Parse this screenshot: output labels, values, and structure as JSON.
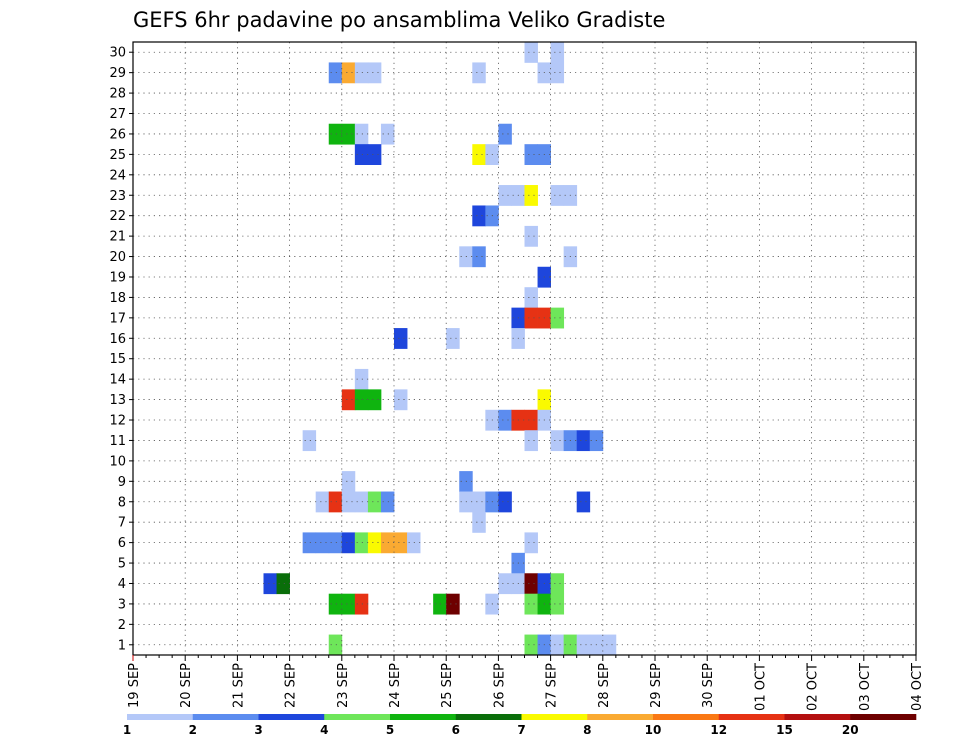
{
  "chart_data": {
    "type": "heatmap",
    "title": "GEFS 6hr padavine po ansamblima Veliko Gradiste",
    "x_labels": [
      "19 SEP",
      "20 SEP",
      "21 SEP",
      "22 SEP",
      "23 SEP",
      "24 SEP",
      "25 SEP",
      "26 SEP",
      "27 SEP",
      "28 SEP",
      "29 SEP",
      "30 SEP",
      "01 OCT",
      "02 OCT",
      "03 OCT",
      "04 OCT"
    ],
    "x_range_steps": [
      0,
      60
    ],
    "y_range": [
      0.5,
      30.5
    ],
    "y_ticks": [
      1,
      2,
      3,
      4,
      5,
      6,
      7,
      8,
      9,
      10,
      11,
      12,
      13,
      14,
      15,
      16,
      17,
      18,
      19,
      20,
      21,
      22,
      23,
      24,
      25,
      26,
      27,
      28,
      29,
      30
    ],
    "grid": true,
    "colorbar": {
      "labels": [
        "1",
        "2",
        "3",
        "4",
        "5",
        "6",
        "7",
        "8",
        "10",
        "12",
        "15",
        "20"
      ],
      "colors": [
        "#b4c8f8",
        "#5c8cef",
        "#1e46dc",
        "#6ee65a",
        "#0fb40f",
        "#0a6e0a",
        "#fafa00",
        "#faaa32",
        "#fa7814",
        "#e63214",
        "#b40f0f",
        "#6e0000"
      ]
    },
    "cells": [
      {
        "x": 30,
        "y": 30,
        "v": 1
      },
      {
        "x": 32,
        "y": 30,
        "v": 1
      },
      {
        "x": 15,
        "y": 29,
        "v": 2
      },
      {
        "x": 16,
        "y": 29,
        "v": 8
      },
      {
        "x": 17,
        "y": 29,
        "v": 1
      },
      {
        "x": 18,
        "y": 29,
        "v": 1
      },
      {
        "x": 26,
        "y": 29,
        "v": 1
      },
      {
        "x": 31,
        "y": 29,
        "v": 1
      },
      {
        "x": 32,
        "y": 29,
        "v": 1
      },
      {
        "x": 15,
        "y": 26,
        "v": 5
      },
      {
        "x": 16,
        "y": 26,
        "v": 5
      },
      {
        "x": 17,
        "y": 26,
        "v": 1
      },
      {
        "x": 19,
        "y": 26,
        "v": 1
      },
      {
        "x": 28,
        "y": 26,
        "v": 2
      },
      {
        "x": 17,
        "y": 25,
        "v": 3
      },
      {
        "x": 18,
        "y": 25,
        "v": 3
      },
      {
        "x": 26,
        "y": 25,
        "v": 7
      },
      {
        "x": 27,
        "y": 25,
        "v": 1
      },
      {
        "x": 30,
        "y": 25,
        "v": 2
      },
      {
        "x": 31,
        "y": 25,
        "v": 2
      },
      {
        "x": 28,
        "y": 23,
        "v": 1
      },
      {
        "x": 29,
        "y": 23,
        "v": 1
      },
      {
        "x": 30,
        "y": 23,
        "v": 7
      },
      {
        "x": 32,
        "y": 23,
        "v": 1
      },
      {
        "x": 33,
        "y": 23,
        "v": 1
      },
      {
        "x": 26,
        "y": 22,
        "v": 3
      },
      {
        "x": 27,
        "y": 22,
        "v": 2
      },
      {
        "x": 30,
        "y": 21,
        "v": 1
      },
      {
        "x": 25,
        "y": 20,
        "v": 1
      },
      {
        "x": 26,
        "y": 20,
        "v": 2
      },
      {
        "x": 33,
        "y": 20,
        "v": 1
      },
      {
        "x": 31,
        "y": 19,
        "v": 3
      },
      {
        "x": 30,
        "y": 18,
        "v": 1
      },
      {
        "x": 29,
        "y": 17,
        "v": 3
      },
      {
        "x": 30,
        "y": 17,
        "v": 14
      },
      {
        "x": 31,
        "y": 17,
        "v": 12
      },
      {
        "x": 32,
        "y": 17,
        "v": 4
      },
      {
        "x": 20,
        "y": 16,
        "v": 3
      },
      {
        "x": 24,
        "y": 16,
        "v": 1
      },
      {
        "x": 29,
        "y": 16,
        "v": 1
      },
      {
        "x": 17,
        "y": 14,
        "v": 1
      },
      {
        "x": 16,
        "y": 13,
        "v": 14
      },
      {
        "x": 17,
        "y": 13,
        "v": 5
      },
      {
        "x": 18,
        "y": 13,
        "v": 5
      },
      {
        "x": 20,
        "y": 13,
        "v": 1
      },
      {
        "x": 31,
        "y": 13,
        "v": 7
      },
      {
        "x": 27,
        "y": 12,
        "v": 1
      },
      {
        "x": 28,
        "y": 12,
        "v": 2
      },
      {
        "x": 29,
        "y": 12,
        "v": 14
      },
      {
        "x": 30,
        "y": 12,
        "v": 14
      },
      {
        "x": 31,
        "y": 12,
        "v": 1
      },
      {
        "x": 13,
        "y": 11,
        "v": 1
      },
      {
        "x": 30,
        "y": 11,
        "v": 1
      },
      {
        "x": 32,
        "y": 11,
        "v": 1
      },
      {
        "x": 33,
        "y": 11,
        "v": 2
      },
      {
        "x": 34,
        "y": 11,
        "v": 3
      },
      {
        "x": 35,
        "y": 11,
        "v": 2
      },
      {
        "x": 16,
        "y": 9,
        "v": 1
      },
      {
        "x": 25,
        "y": 9,
        "v": 2
      },
      {
        "x": 14,
        "y": 8,
        "v": 1
      },
      {
        "x": 15,
        "y": 8,
        "v": 14
      },
      {
        "x": 16,
        "y": 8,
        "v": 1
      },
      {
        "x": 17,
        "y": 8,
        "v": 1
      },
      {
        "x": 18,
        "y": 8,
        "v": 4
      },
      {
        "x": 19,
        "y": 8,
        "v": 2
      },
      {
        "x": 25,
        "y": 8,
        "v": 1
      },
      {
        "x": 26,
        "y": 8,
        "v": 1
      },
      {
        "x": 27,
        "y": 8,
        "v": 2
      },
      {
        "x": 28,
        "y": 8,
        "v": 3
      },
      {
        "x": 34,
        "y": 8,
        "v": 3
      },
      {
        "x": 26,
        "y": 7,
        "v": 1
      },
      {
        "x": 13,
        "y": 6,
        "v": 2
      },
      {
        "x": 14,
        "y": 6,
        "v": 2
      },
      {
        "x": 15,
        "y": 6,
        "v": 2
      },
      {
        "x": 16,
        "y": 6,
        "v": 3
      },
      {
        "x": 17,
        "y": 6,
        "v": 4
      },
      {
        "x": 18,
        "y": 6,
        "v": 7
      },
      {
        "x": 19,
        "y": 6,
        "v": 8
      },
      {
        "x": 20,
        "y": 6,
        "v": 8
      },
      {
        "x": 21,
        "y": 6,
        "v": 1
      },
      {
        "x": 30,
        "y": 6,
        "v": 1
      },
      {
        "x": 29,
        "y": 5,
        "v": 2
      },
      {
        "x": 10,
        "y": 4,
        "v": 3
      },
      {
        "x": 11,
        "y": 4,
        "v": 6
      },
      {
        "x": 28,
        "y": 4,
        "v": 1
      },
      {
        "x": 29,
        "y": 4,
        "v": 1
      },
      {
        "x": 30,
        "y": 4,
        "v": 20
      },
      {
        "x": 31,
        "y": 4,
        "v": 3
      },
      {
        "x": 32,
        "y": 4,
        "v": 4
      },
      {
        "x": 15,
        "y": 3,
        "v": 5
      },
      {
        "x": 16,
        "y": 3,
        "v": 5
      },
      {
        "x": 17,
        "y": 3,
        "v": 12
      },
      {
        "x": 23,
        "y": 3,
        "v": 5
      },
      {
        "x": 24,
        "y": 3,
        "v": 20
      },
      {
        "x": 27,
        "y": 3,
        "v": 1
      },
      {
        "x": 30,
        "y": 3,
        "v": 4
      },
      {
        "x": 31,
        "y": 3,
        "v": 5
      },
      {
        "x": 32,
        "y": 3,
        "v": 4
      },
      {
        "x": 15,
        "y": 1,
        "v": 4
      },
      {
        "x": 30,
        "y": 1,
        "v": 4
      },
      {
        "x": 31,
        "y": 1,
        "v": 2
      },
      {
        "x": 32,
        "y": 1,
        "v": 1
      },
      {
        "x": 33,
        "y": 1,
        "v": 4
      },
      {
        "x": 34,
        "y": 1,
        "v": 1
      },
      {
        "x": 35,
        "y": 1,
        "v": 1
      },
      {
        "x": 36,
        "y": 1,
        "v": 1
      }
    ]
  }
}
